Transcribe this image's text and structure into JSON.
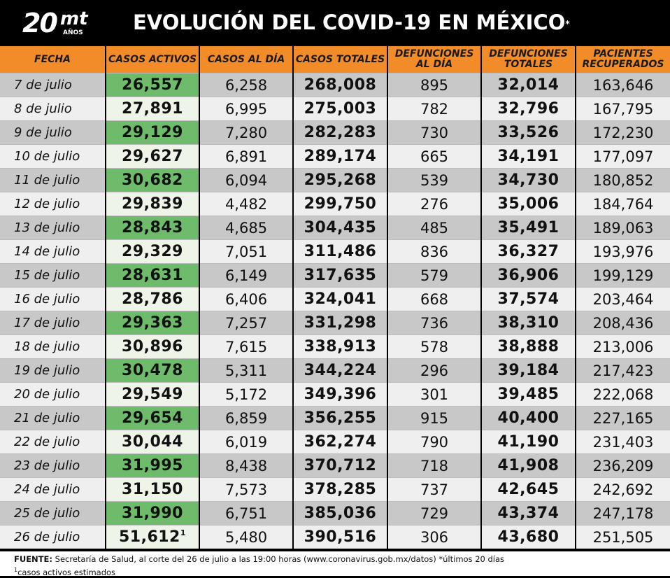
{
  "logo": {
    "number": "20",
    "brand": "mt",
    "years": "AÑOS"
  },
  "title": {
    "text": "EVOLUCIÓN DEL COVID-19 EN MÉXICO",
    "mark": "*"
  },
  "columns": [
    "FECHA",
    "CASOS ACTIVOS",
    "CASOS AL DÍA",
    "CASOS TOTALES",
    "DEFUNCIONES AL DÍA",
    "DEFUNCIONES TOTALES",
    "PACIENTES RECUPERADOS"
  ],
  "rows": [
    {
      "date": "7 de julio",
      "active": "26,557",
      "daily": "6,258",
      "total": "268,008",
      "deaths_daily": "895",
      "deaths_total": "32,014",
      "recovered": "163,646"
    },
    {
      "date": "8 de julio",
      "active": "27,891",
      "daily": "6,995",
      "total": "275,003",
      "deaths_daily": "782",
      "deaths_total": "32,796",
      "recovered": "167,795"
    },
    {
      "date": "9 de julio",
      "active": "29,129",
      "daily": "7,280",
      "total": "282,283",
      "deaths_daily": "730",
      "deaths_total": "33,526",
      "recovered": "172,230"
    },
    {
      "date": "10 de julio",
      "active": "29,627",
      "daily": "6,891",
      "total": "289,174",
      "deaths_daily": "665",
      "deaths_total": "34,191",
      "recovered": "177,097"
    },
    {
      "date": "11 de julio",
      "active": "30,682",
      "daily": "6,094",
      "total": "295,268",
      "deaths_daily": "539",
      "deaths_total": "34,730",
      "recovered": "180,852"
    },
    {
      "date": "12 de julio",
      "active": "29,839",
      "daily": "4,482",
      "total": "299,750",
      "deaths_daily": "276",
      "deaths_total": "35,006",
      "recovered": "184,764"
    },
    {
      "date": "13 de julio",
      "active": "28,843",
      "daily": "4,685",
      "total": "304,435",
      "deaths_daily": "485",
      "deaths_total": "35,491",
      "recovered": "189,063"
    },
    {
      "date": "14 de julio",
      "active": "29,329",
      "daily": "7,051",
      "total": "311,486",
      "deaths_daily": "836",
      "deaths_total": "36,327",
      "recovered": "193,976"
    },
    {
      "date": "15 de julio",
      "active": "28,631",
      "daily": "6,149",
      "total": "317,635",
      "deaths_daily": "579",
      "deaths_total": "36,906",
      "recovered": "199,129"
    },
    {
      "date": "16 de julio",
      "active": "28,786",
      "daily": "6,406",
      "total": "324,041",
      "deaths_daily": "668",
      "deaths_total": "37,574",
      "recovered": "203,464"
    },
    {
      "date": "17 de julio",
      "active": "29,363",
      "daily": "7,257",
      "total": "331,298",
      "deaths_daily": "736",
      "deaths_total": "38,310",
      "recovered": "208,436"
    },
    {
      "date": "18 de julio",
      "active": "30,896",
      "daily": "7,615",
      "total": "338,913",
      "deaths_daily": "578",
      "deaths_total": "38,888",
      "recovered": "213,006"
    },
    {
      "date": "19 de julio",
      "active": "30,478",
      "daily": "5,311",
      "total": "344,224",
      "deaths_daily": "296",
      "deaths_total": "39,184",
      "recovered": "217,423"
    },
    {
      "date": "20 de julio",
      "active": "29,549",
      "daily": "5,172",
      "total": "349,396",
      "deaths_daily": "301",
      "deaths_total": "39,485",
      "recovered": "222,068"
    },
    {
      "date": "21 de julio",
      "active": "29,654",
      "daily": "6,859",
      "total": "356,255",
      "deaths_daily": "915",
      "deaths_total": "40,400",
      "recovered": "227,165"
    },
    {
      "date": "22 de julio",
      "active": "30,044",
      "daily": "6,019",
      "total": "362,274",
      "deaths_daily": "790",
      "deaths_total": "41,190",
      "recovered": "231,403"
    },
    {
      "date": "23 de julio",
      "active": "31,995",
      "daily": "8,438",
      "total": "370,712",
      "deaths_daily": "718",
      "deaths_total": "41,908",
      "recovered": "236,209"
    },
    {
      "date": "24 de julio",
      "active": "31,150",
      "daily": "7,573",
      "total": "378,285",
      "deaths_daily": "737",
      "deaths_total": "42,645",
      "recovered": "242,692"
    },
    {
      "date": "25 de julio",
      "active": "31,990",
      "daily": "6,751",
      "total": "385,036",
      "deaths_daily": "729",
      "deaths_total": "43,374",
      "recovered": "247,178"
    },
    {
      "date": "26 de julio",
      "active": "51,612",
      "active_mark": "1",
      "daily": "5,480",
      "total": "390,516",
      "deaths_daily": "306",
      "deaths_total": "43,680",
      "recovered": "251,505"
    }
  ],
  "footer": {
    "label": "FUENTE:",
    "line1": " Secretaría de Salud, al corte del 26 de julio a las 19:00 horas (www.coronavirus.gob.mx/datos) *últimos 20 días",
    "line2_mark": "1",
    "line2": "casos activos estimados"
  },
  "colors": {
    "header_bg": "#f28c28",
    "active_odd": "#6dbb6b",
    "active_even": "#eef5e8",
    "row_odd": "#c8c8c8",
    "row_even": "#efefef"
  }
}
